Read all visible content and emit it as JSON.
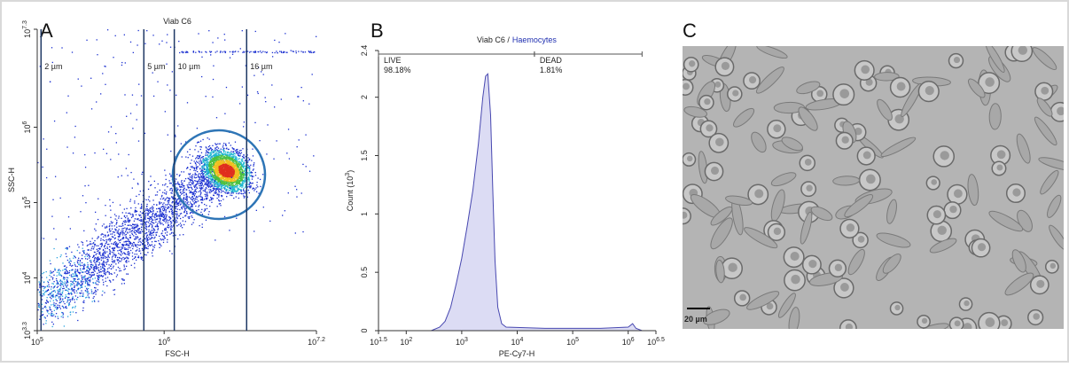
{
  "figure": {
    "panels": [
      {
        "letter": "A",
        "title": "Viab C6",
        "x_label": "FSC-H",
        "y_label": "SSC-H",
        "xlim": [
          5,
          7.2
        ],
        "xticks": [
          {
            "value": 5,
            "label": "10",
            "sup": "5"
          },
          {
            "value": 6,
            "label": "10",
            "sup": "6"
          },
          {
            "value": 7.2,
            "label": "10",
            "sup": "7.2"
          }
        ],
        "ylim": [
          3.3,
          7.3
        ],
        "yticks": [
          {
            "value": 3.3,
            "label": "10",
            "sup": "3.3"
          },
          {
            "value": 4,
            "label": "10",
            "sup": "4"
          },
          {
            "value": 5,
            "label": "10",
            "sup": "5"
          },
          {
            "value": 6,
            "label": "10",
            "sup": "6"
          },
          {
            "value": 7.3,
            "label": "10",
            "sup": "7.3"
          }
        ],
        "gates": [
          {
            "value": 5.03,
            "label": "2 µm"
          },
          {
            "value": 5.84,
            "label": "5 µm"
          },
          {
            "value": 6.08,
            "label": "10 µm"
          },
          {
            "value": 6.65,
            "label": "16 µm"
          }
        ]
      },
      {
        "letter": "B",
        "title": "Viab C6 /",
        "title_highlight": "Haemocytes",
        "x_label": "PE-Cy7-H",
        "y_label": "Count (10",
        "y_label_sup": "3",
        "y_label_end": ")",
        "xlim": [
          1.5,
          6.5
        ],
        "xticks": [
          {
            "value": 1.5,
            "label": "10",
            "sup": "1.5"
          },
          {
            "value": 2,
            "label": "10",
            "sup": "2"
          },
          {
            "value": 3,
            "label": "10",
            "sup": "3"
          },
          {
            "value": 4,
            "label": "10",
            "sup": "4"
          },
          {
            "value": 5,
            "label": "10",
            "sup": "5"
          },
          {
            "value": 6,
            "label": "10",
            "sup": "6"
          },
          {
            "value": 6.5,
            "label": "10",
            "sup": "6.5"
          }
        ],
        "ylim": [
          0,
          2.4
        ],
        "yticks": [
          0,
          0.5,
          1,
          1.5,
          2,
          2.4
        ],
        "gates": [
          {
            "name": "LIVE",
            "percent": "98.18%",
            "range": [
              1.5,
              4.31
            ]
          },
          {
            "name": "DEAD",
            "percent": "1.81%",
            "range": [
              4.31,
              6.25
            ]
          }
        ],
        "x": [
          2.45,
          2.6,
          2.7,
          2.8,
          2.9,
          3.0,
          3.1,
          3.2,
          3.3,
          3.38,
          3.43,
          3.47,
          3.52,
          3.56,
          3.6,
          3.65,
          3.72,
          3.8,
          4.5,
          5.5,
          6.0,
          6.08,
          6.14,
          6.25
        ],
        "counts": [
          0,
          0.03,
          0.08,
          0.2,
          0.4,
          0.62,
          0.9,
          1.2,
          1.6,
          2.0,
          2.18,
          2.2,
          1.85,
          1.2,
          0.6,
          0.2,
          0.06,
          0.03,
          0.02,
          0.02,
          0.03,
          0.06,
          0.02,
          0
        ]
      },
      {
        "letter": "C",
        "scale_bar": "20 µm"
      }
    ]
  }
}
